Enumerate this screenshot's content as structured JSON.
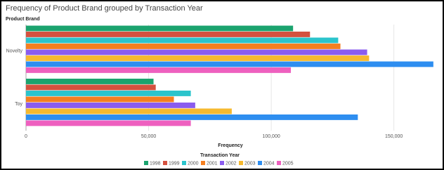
{
  "chart_data": {
    "type": "hbar",
    "title": "Frequency of Product Brand grouped by Transaction Year",
    "y_label": "Product Brand",
    "x_label": "Frequency",
    "legend_title": "Transaction Year",
    "categories": [
      "Novelty",
      "Toy"
    ],
    "series": [
      {
        "name": "1998",
        "color": "#1ba36e",
        "values": [
          108900,
          52000
        ]
      },
      {
        "name": "1999",
        "color": "#d4513f",
        "values": [
          115800,
          52900
        ]
      },
      {
        "name": "2000",
        "color": "#2bc4cc",
        "values": [
          127300,
          67200
        ]
      },
      {
        "name": "2001",
        "color": "#f47f20",
        "values": [
          128200,
          60300
        ]
      },
      {
        "name": "2002",
        "color": "#8a5cee",
        "values": [
          139100,
          69000
        ]
      },
      {
        "name": "2003",
        "color": "#f6b92f",
        "values": [
          139900,
          83900
        ]
      },
      {
        "name": "2004",
        "color": "#2e8ef0",
        "values": [
          166100,
          135300
        ]
      },
      {
        "name": "2005",
        "color": "#ee60bf",
        "values": [
          108000,
          67200
        ]
      }
    ],
    "xlim": [
      0,
      167000
    ],
    "xticks": [
      0,
      {
        "value": 50000,
        "label": "50,000"
      },
      {
        "value": 100000,
        "label": "100,000"
      },
      {
        "value": 150000,
        "label": "150,000"
      }
    ],
    "grid": true,
    "legend": "bottom"
  }
}
